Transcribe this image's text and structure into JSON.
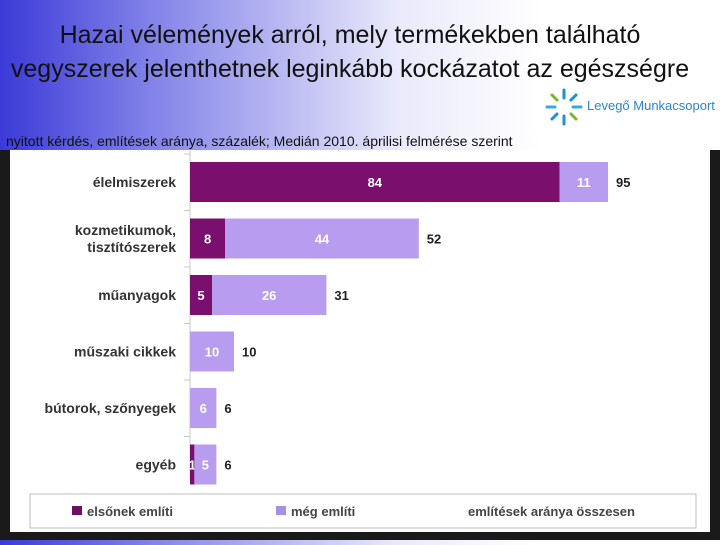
{
  "title": "Hazai vélemények arról, mely termékekben található vegyszerek jelenthetnek leginkább kockázatot az egészségre",
  "subtitle": "nyitott kérdés, említések aránya, százalék; Medián 2010. áprilisi felmérése szerint",
  "logo": {
    "text": "Levegő Munkacsoport"
  },
  "colors": {
    "first": "#7b0f6e",
    "also": "#b79cf0",
    "legend_first": "#6e0f64",
    "legend_also": "#a98ee6"
  },
  "chart_data": {
    "type": "bar",
    "orientation": "horizontal",
    "stacked": true,
    "categories": [
      "élelmiszerek",
      "kozmetikumok, tisztítószerek",
      "műanyagok",
      "műszaki cikkek",
      "bútorok, szőnyegek",
      "egyéb"
    ],
    "category_lines": [
      [
        "élelmiszerek"
      ],
      [
        "kozmetikumok,",
        "tisztítószerek"
      ],
      [
        "műanyagok"
      ],
      [
        "műszaki cikkek"
      ],
      [
        "bútorok, szőnyegek"
      ],
      [
        "egyéb"
      ]
    ],
    "series": [
      {
        "name": "elsőnek említi",
        "values": [
          84,
          8,
          5,
          0,
          0,
          1
        ]
      },
      {
        "name": "még említi",
        "values": [
          11,
          44,
          26,
          10,
          6,
          5
        ]
      }
    ],
    "totals_label": "említések aránya összesen",
    "totals": [
      95,
      52,
      31,
      10,
      6,
      6
    ],
    "xlim": [
      0,
      100
    ],
    "legend_position": "bottom"
  }
}
